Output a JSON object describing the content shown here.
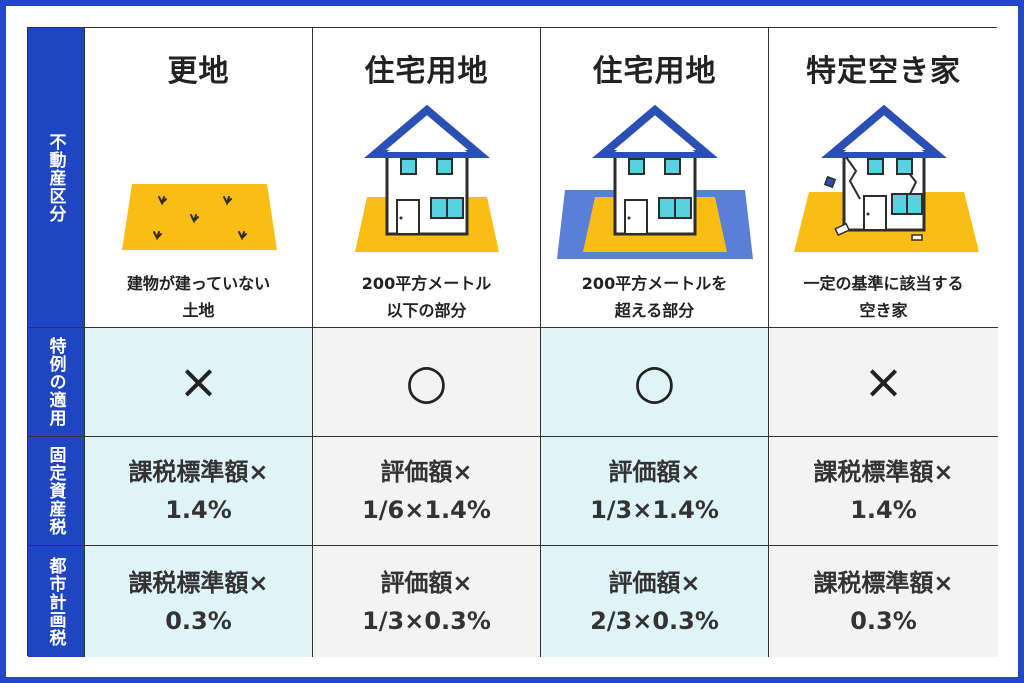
{
  "row_headers": {
    "property_type": "不動産区分",
    "special_rule": "特例の適用",
    "property_tax": "固定資産税",
    "city_planning_tax": "都市計画税"
  },
  "columns": [
    {
      "title": "更地",
      "description": "建物が建っていない\n土地",
      "illustration": "vacant-land-icon",
      "special_rule": "×",
      "property_tax": "課税標準額×\n1.4%",
      "city_planning_tax": "課税標準額×\n0.3%"
    },
    {
      "title": "住宅用地",
      "description": "200平方メートル\n以下の部分",
      "illustration": "house-small-lot-icon",
      "special_rule": "○",
      "property_tax": "評価額×\n1/6×1.4%",
      "city_planning_tax": "評価額×\n1/3×0.3%"
    },
    {
      "title": "住宅用地",
      "description": "200平方メートルを\n超える部分",
      "illustration": "house-large-lot-icon",
      "special_rule": "○",
      "property_tax": "評価額×\n1/3×1.4%",
      "city_planning_tax": "評価額×\n2/3×0.3%"
    },
    {
      "title": "特定空き家",
      "description": "一定の基準に該当する\n空き家",
      "illustration": "dilapidated-house-icon",
      "special_rule": "×",
      "property_tax": "課税標準額×\n1.4%",
      "city_planning_tax": "課税標準額×\n0.3%"
    }
  ],
  "colors": {
    "frame": "#2248c8",
    "row_header_bg": "#1f45c2",
    "highlight_bg": "#dff4f8",
    "neutral_bg": "#f3f3f3",
    "land_yellow": "#f9bd13",
    "roof_blue": "#2a4fb5",
    "window_cyan": "#58d2df",
    "large_lot_blue": "#5a7fd6"
  }
}
